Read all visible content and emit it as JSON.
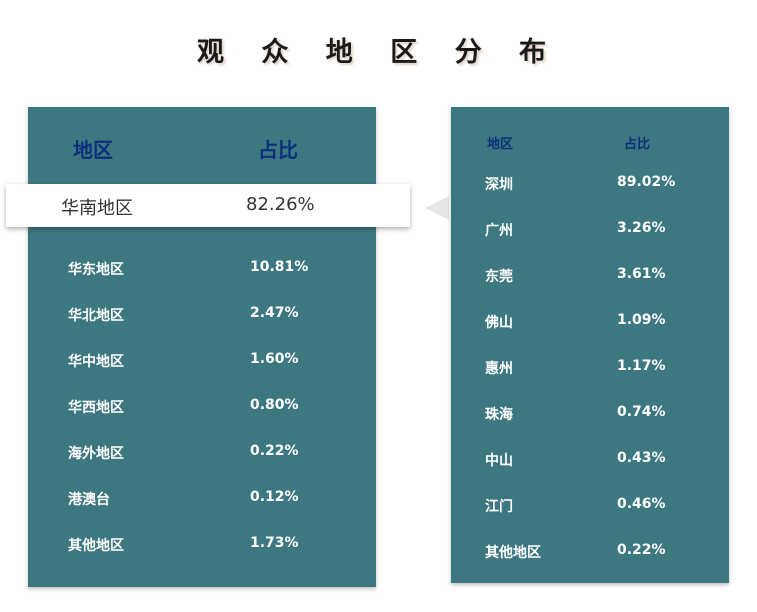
{
  "title": "观 众 地 区 分 布",
  "left_table": {
    "header_region": "地区",
    "header_share": "占比",
    "highlight": {
      "region": "华南地区",
      "share": "82.26%"
    },
    "rows": [
      {
        "region": "华东地区",
        "share": "10.81%"
      },
      {
        "region": "华北地区",
        "share": "2.47%"
      },
      {
        "region": "华中地区",
        "share": "1.60%"
      },
      {
        "region": "华西地区",
        "share": "0.80%"
      },
      {
        "region": "海外地区",
        "share": "0.22%"
      },
      {
        "region": "港澳台",
        "share": "0.12%"
      },
      {
        "region": "其他地区",
        "share": "1.73%"
      }
    ]
  },
  "right_table": {
    "header_region": "地区",
    "header_share": "占比",
    "rows": [
      {
        "region": "深圳",
        "share": "89.02%"
      },
      {
        "region": "广州",
        "share": "3.26%"
      },
      {
        "region": "东莞",
        "share": "3.61%"
      },
      {
        "region": "佛山",
        "share": "1.09%"
      },
      {
        "region": "惠州",
        "share": "1.17%"
      },
      {
        "region": "珠海",
        "share": "0.74%"
      },
      {
        "region": "中山",
        "share": "0.43%"
      },
      {
        "region": "江门",
        "share": "0.46%"
      },
      {
        "region": "其他地区",
        "share": "0.22%"
      }
    ]
  },
  "colors": {
    "panel": "#3d7880",
    "header_text": "#0b2f7a",
    "cell_text": "#ffffff"
  }
}
